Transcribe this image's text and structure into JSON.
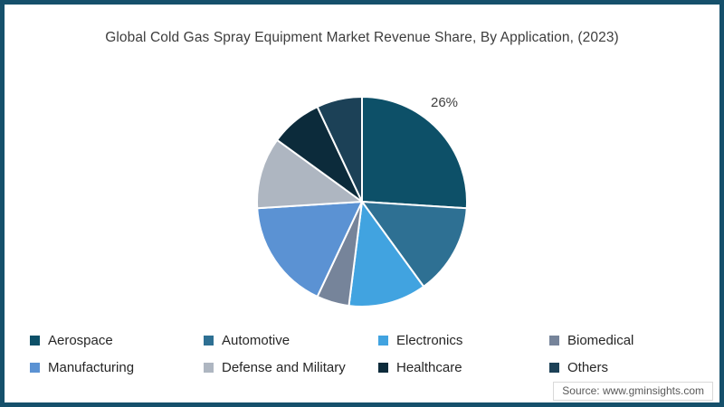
{
  "title": "Global Cold Gas Spray Equipment Market Revenue Share, By Application, (2023)",
  "source": "Source: www.gminsights.com",
  "frame": {
    "border_color": "#15506b",
    "background_color": "#ffffff"
  },
  "chart_data": {
    "type": "pie",
    "title": "Global Cold Gas Spray Equipment Market Revenue Share, By Application, (2023)",
    "categories": [
      "Aerospace",
      "Automotive",
      "Electronics",
      "Biomedical",
      "Manufacturing",
      "Defense and Military",
      "Healthcare",
      "Others"
    ],
    "values": [
      26,
      14,
      12,
      5,
      17,
      11,
      8,
      7
    ],
    "unit": "%",
    "colors": [
      "#0d5068",
      "#2e7093",
      "#41a3e0",
      "#76849a",
      "#5b92d3",
      "#aeb6c1",
      "#0c2b3b",
      "#1c4157"
    ],
    "start_angle_deg": 0,
    "direction": "clockwise",
    "slice_border_color": "#ffffff",
    "legend_position": "bottom",
    "data_labels": [
      {
        "category": "Aerospace",
        "text": "26%"
      }
    ]
  },
  "legend": {
    "items": [
      {
        "label": "Aerospace",
        "color": "#0d5068"
      },
      {
        "label": "Automotive",
        "color": "#2e7093"
      },
      {
        "label": "Electronics",
        "color": "#41a3e0"
      },
      {
        "label": "Biomedical",
        "color": "#76849a"
      },
      {
        "label": "Manufacturing",
        "color": "#5b92d3"
      },
      {
        "label": "Defense and Military",
        "color": "#aeb6c1"
      },
      {
        "label": "Healthcare",
        "color": "#0c2b3b"
      },
      {
        "label": "Others",
        "color": "#1c4157"
      }
    ]
  }
}
